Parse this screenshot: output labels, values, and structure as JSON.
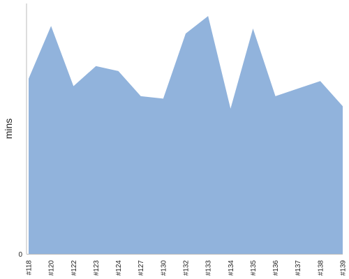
{
  "chart_data": {
    "type": "area",
    "title": "",
    "xlabel": "",
    "ylabel": "mins",
    "categories": [
      "#118",
      "#120",
      "#122",
      "#123",
      "#124",
      "#127",
      "#130",
      "#132",
      "#133",
      "#134",
      "#135",
      "#136",
      "#137",
      "#138",
      "#139"
    ],
    "values": [
      70,
      91,
      67,
      75,
      73,
      63,
      62,
      88,
      95,
      58,
      90,
      63,
      66,
      69,
      59
    ],
    "ylim": [
      0,
      100
    ],
    "y_ticks": [
      "0"
    ],
    "grid": false,
    "legend": "none",
    "colors": {
      "fill": "#91b3dc",
      "axis": "#bbbbbb",
      "text": "#222222"
    }
  }
}
